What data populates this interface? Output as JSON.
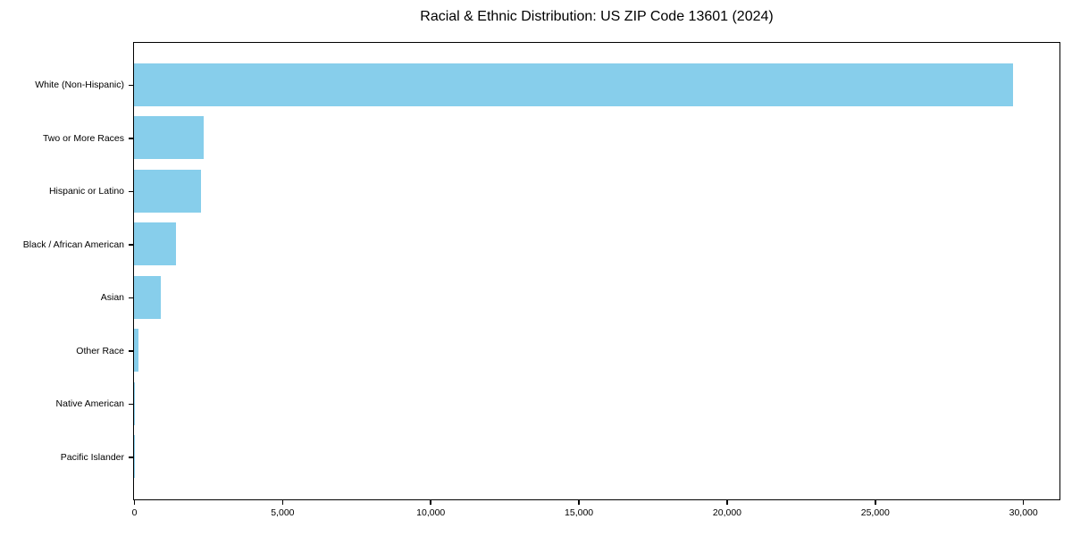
{
  "chart_data": {
    "type": "bar",
    "orientation": "horizontal",
    "title": "Racial & Ethnic Distribution: US ZIP Code 13601 (2024)",
    "xlabel": "",
    "ylabel": "",
    "categories": [
      "White (Non-Hispanic)",
      "Two or More Races",
      "Hispanic or Latino",
      "Black / African American",
      "Asian",
      "Other Race",
      "Native American",
      "Pacific Islander"
    ],
    "values": [
      29670,
      2350,
      2250,
      1410,
      900,
      140,
      40,
      15
    ],
    "xlim": [
      0,
      31200
    ],
    "xticks": [
      0,
      5000,
      10000,
      15000,
      20000,
      25000,
      30000
    ],
    "xtick_labels": [
      "0",
      "5,000",
      "10,000",
      "15,000",
      "20,000",
      "25,000",
      "30,000"
    ],
    "grid": false,
    "legend": false,
    "bar_color": "#87CEEB"
  },
  "colors": {
    "bar": "#87CEEB",
    "spine": "#000000",
    "text": "#000000",
    "background": "#FFFFFF"
  }
}
